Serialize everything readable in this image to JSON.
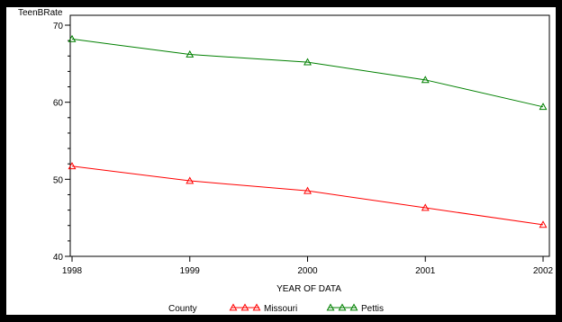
{
  "chart_data": {
    "type": "line",
    "title": "",
    "ylabel": "TeenBRate",
    "xlabel": "YEAR OF DATA",
    "x": [
      "1998",
      "1999",
      "2000",
      "2001",
      "2002"
    ],
    "yticks": [
      "40",
      "50",
      "60",
      "70"
    ],
    "ylim": [
      40,
      70
    ],
    "grid": false,
    "legend": {
      "title": "County",
      "placement": "bottom-center"
    },
    "marker": "triangle",
    "series": [
      {
        "name": "Missouri",
        "color": "#ff0000",
        "values": [
          51.7,
          49.8,
          48.5,
          46.3,
          44.1
        ]
      },
      {
        "name": "Pettis",
        "color": "#008000",
        "values": [
          68.2,
          66.2,
          65.2,
          62.9,
          59.4
        ]
      }
    ]
  }
}
